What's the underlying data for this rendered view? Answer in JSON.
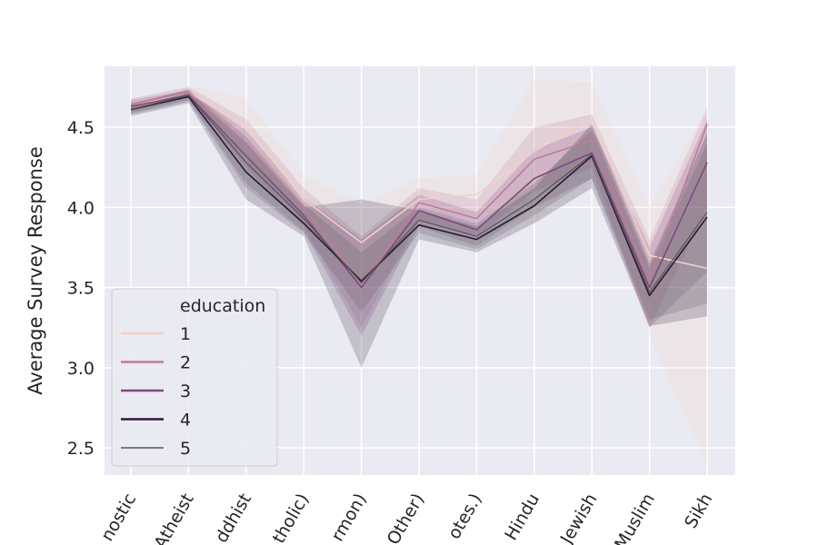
{
  "chart_data": {
    "type": "line",
    "title": "",
    "xlabel": "",
    "ylabel": "Average Survey Response",
    "ylim": [
      2.33,
      4.88
    ],
    "yticks": [
      2.5,
      3.0,
      3.5,
      4.0,
      4.5
    ],
    "ytick_labels": [
      "2.5",
      "3.0",
      "3.5",
      "4.0",
      "4.5"
    ],
    "categories": [
      "nostic",
      "Atheist",
      "ddhist",
      "tholic)",
      "rmon)",
      "Other)",
      "otes.)",
      "Hindu",
      "Jewish",
      "Muslim",
      "Sikh"
    ],
    "grid": true,
    "legend": {
      "title": "education",
      "position": "lower-left"
    },
    "series": [
      {
        "name": "1",
        "color": "#f2d0c4",
        "values": [
          4.63,
          4.72,
          4.5,
          4.05,
          3.78,
          4.05,
          4.08,
          4.35,
          4.55,
          3.7,
          3.62
        ],
        "lower": [
          4.59,
          4.68,
          4.3,
          3.9,
          3.55,
          3.9,
          3.95,
          3.9,
          4.3,
          3.2,
          2.4
        ],
        "upper": [
          4.67,
          4.76,
          4.68,
          4.2,
          4.02,
          4.18,
          4.2,
          4.8,
          4.78,
          4.0,
          4.62
        ]
      },
      {
        "name": "2",
        "color": "#c27a9a",
        "values": [
          4.64,
          4.72,
          4.4,
          4.0,
          3.52,
          4.03,
          3.93,
          4.3,
          4.42,
          3.55,
          4.52
        ],
        "lower": [
          4.6,
          4.69,
          4.25,
          3.88,
          3.25,
          3.92,
          3.82,
          4.1,
          4.25,
          3.25,
          4.0
        ],
        "upper": [
          4.68,
          4.75,
          4.55,
          4.12,
          3.82,
          4.12,
          4.05,
          4.5,
          4.58,
          3.8,
          4.62
        ]
      },
      {
        "name": "3",
        "color": "#7e4a7d",
        "values": [
          4.63,
          4.7,
          4.32,
          3.95,
          3.5,
          3.98,
          3.86,
          4.18,
          4.34,
          3.5,
          4.28
        ],
        "lower": [
          4.59,
          4.67,
          4.15,
          3.85,
          3.2,
          3.88,
          3.76,
          4.0,
          4.18,
          3.25,
          3.6
        ],
        "upper": [
          4.67,
          4.73,
          4.48,
          4.06,
          3.8,
          4.08,
          3.97,
          4.36,
          4.5,
          3.75,
          4.55
        ]
      },
      {
        "name": "4",
        "color": "#2a1a35",
        "values": [
          4.61,
          4.69,
          4.22,
          3.9,
          3.54,
          3.89,
          3.8,
          4.01,
          4.32,
          3.45,
          3.94
        ],
        "lower": [
          4.57,
          4.65,
          4.05,
          3.82,
          3.0,
          3.8,
          3.72,
          3.9,
          4.12,
          3.26,
          3.32
        ],
        "upper": [
          4.65,
          4.73,
          4.4,
          4.0,
          4.05,
          3.98,
          3.88,
          4.12,
          4.52,
          3.65,
          4.46
        ]
      },
      {
        "name": "5",
        "color": "#555555",
        "values": [
          4.61,
          4.7,
          4.28,
          3.93,
          3.53,
          3.92,
          3.82,
          4.05,
          4.33,
          3.47,
          3.97
        ],
        "lower": [
          4.58,
          4.66,
          4.12,
          3.84,
          3.35,
          3.84,
          3.74,
          3.95,
          4.18,
          3.3,
          3.4
        ],
        "upper": [
          4.64,
          4.74,
          4.44,
          4.02,
          3.72,
          4.0,
          3.9,
          4.15,
          4.48,
          3.62,
          4.4
        ]
      }
    ]
  }
}
